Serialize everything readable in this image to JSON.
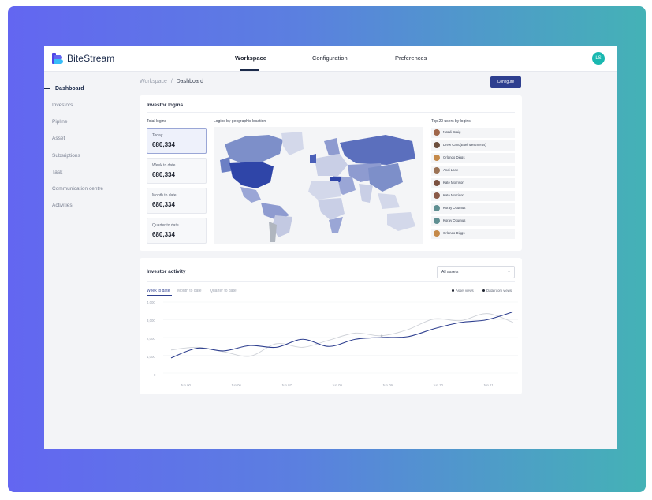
{
  "brand": {
    "name": "BiteStream"
  },
  "topnav": {
    "tabs": [
      "Workspace",
      "Configuration",
      "Preferences"
    ],
    "active": "Workspace"
  },
  "user": {
    "initials": "LS"
  },
  "sidebar": {
    "items": [
      "Dashboard",
      "Investors",
      "Pipline",
      "Asset",
      "Subsriptions",
      "Task",
      "Communication centre",
      "Activities"
    ]
  },
  "breadcrumb": {
    "root": "Workspace",
    "separator": "/",
    "current": "Dashboard"
  },
  "actions": {
    "configure": "Configure"
  },
  "logins": {
    "title": "Investor logins",
    "total_label": "Total logins",
    "kpis": [
      {
        "label": "Today",
        "value": "680,334"
      },
      {
        "label": "Week to date",
        "value": "680,334"
      },
      {
        "label": "Month to date",
        "value": "680,334"
      },
      {
        "label": "Quarter to date",
        "value": "680,334"
      }
    ],
    "map_label": "Logins by geographic location",
    "top_users_label": "Top 20 users by logins",
    "top_users": [
      "Natali Craig",
      "Drew Cano(Bitelnvestments)",
      "Orlando Diggs",
      "Andi Lane",
      "Kate Morrison",
      "Kate Morrison",
      "Koray Okumus",
      "Koray Okumus",
      "Orlando Diggs"
    ]
  },
  "activity": {
    "title": "Investor activity",
    "select_value": "All assets",
    "filter_tabs": [
      "Week to date",
      "Month to date",
      "Quarter to date"
    ],
    "legend": [
      "Asset views",
      "Data room views"
    ]
  },
  "colors": {
    "primary": "#2e3f8f",
    "accent": "#19b8b0",
    "series_secondary": "#cfd2d8"
  },
  "chart_data": {
    "type": "line",
    "x": [
      "Jun 00",
      "",
      "Jun 06",
      "",
      "Jun 07",
      "",
      "Jun 09",
      "",
      "Jun 09",
      "",
      "Jun 10",
      "",
      "Jun 11",
      ""
    ],
    "x_ticks": [
      "Jun 00",
      "Jun 06",
      "Jun 07",
      "Jun 09",
      "Jun 09",
      "Jun 10",
      "Jun 11"
    ],
    "ylim": [
      0,
      4000
    ],
    "y_ticks": [
      "4,000",
      "3,000",
      "2,000",
      "1,000",
      "0"
    ],
    "series": [
      {
        "name": "Asset views",
        "values": [
          850,
          1400,
          1250,
          1550,
          1450,
          1900,
          1500,
          1900,
          2000,
          2050,
          2500,
          2850,
          3000,
          3450
        ]
      },
      {
        "name": "Data room views",
        "values": [
          1300,
          1450,
          1200,
          950,
          1650,
          1450,
          1850,
          2250,
          2100,
          2450,
          3050,
          2950,
          3350,
          2850
        ]
      }
    ]
  }
}
